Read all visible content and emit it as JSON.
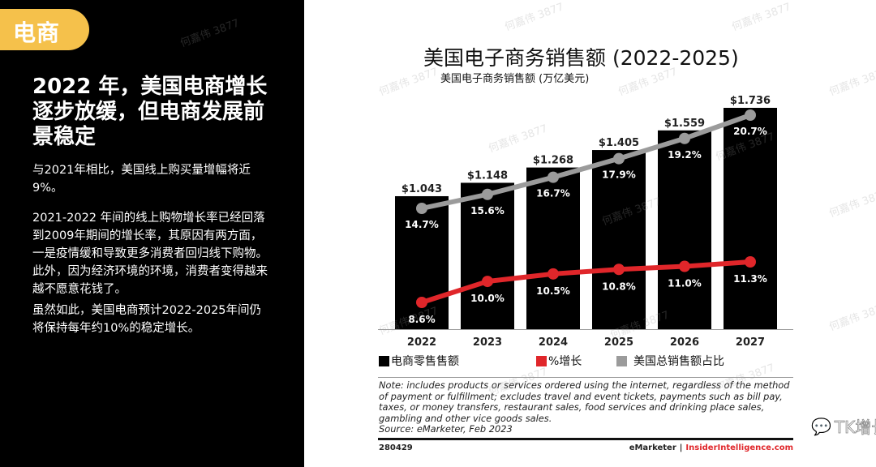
{
  "left_panel": {
    "tag": "电商",
    "headline": "2022 年，美国电商增长逐步放缓，但电商发展前景稳定",
    "paragraphs": [
      "与2021年相比，美国线上购买量增幅将近9%。",
      "2021-2022 年间的线上购物增长率已经回落到2009年期间的增长率，其原因有两方面，一是疫情缓和导致更多消费者回归线下购物。此外，因为经济环境的环境，消费者变得越来越不愿意花钱了。",
      "虽然如此，美国电商预计2022-2025年间仍将保持每年约10%的稳定增长。"
    ]
  },
  "chart_data": {
    "type": "bar",
    "title": "美国电子商务销售额 (2022-2025)",
    "subtitle": "美国电子商务销售额 (万亿美元)",
    "categories": [
      "2022",
      "2023",
      "2024",
      "2025",
      "2026",
      "2027"
    ],
    "series": [
      {
        "name": "电商零售售额",
        "type": "bar",
        "color": "#000000",
        "values": [
          1.043,
          1.148,
          1.268,
          1.405,
          1.559,
          1.736
        ],
        "labels": [
          "$1.043",
          "$1.148",
          "$1.268",
          "$1.405",
          "$1.559",
          "$1.736"
        ]
      },
      {
        "name": "%增长",
        "type": "line",
        "color": "#e0262a",
        "values": [
          8.6,
          10.0,
          10.5,
          10.8,
          11.0,
          11.3
        ],
        "labels": [
          "8.6%",
          "10.0%",
          "10.5%",
          "10.8%",
          "11.0%",
          "11.3%"
        ]
      },
      {
        "name": "美国总销售额占比",
        "type": "line",
        "color": "#9b9b9b",
        "values": [
          14.7,
          15.6,
          16.7,
          17.9,
          19.2,
          20.7
        ],
        "labels": [
          "14.7%",
          "15.6%",
          "16.7%",
          "17.9%",
          "19.2%",
          "20.7%"
        ]
      }
    ],
    "ylim": [
      0,
      1.8
    ],
    "grid": false,
    "legend": "bottom"
  },
  "footer": {
    "note": "Note: includes products or services ordered using the internet, regardless of the method of payment or fulfillment; excludes travel and event tickets, payments such as bill pay, taxes, or money transfers, restaurant sales, food services and drinking place sales, gambling and other vice goods sales.",
    "source": "Source: eMarketer, Feb 2023",
    "code": "280429",
    "brand_a": "eMarketer",
    "brand_sep": "|",
    "brand_b": "InsiderIntelligence.com"
  },
  "watermark": {
    "account": "TK增长会",
    "icon": "wechat-icon",
    "text": "何嘉伟 3877"
  }
}
